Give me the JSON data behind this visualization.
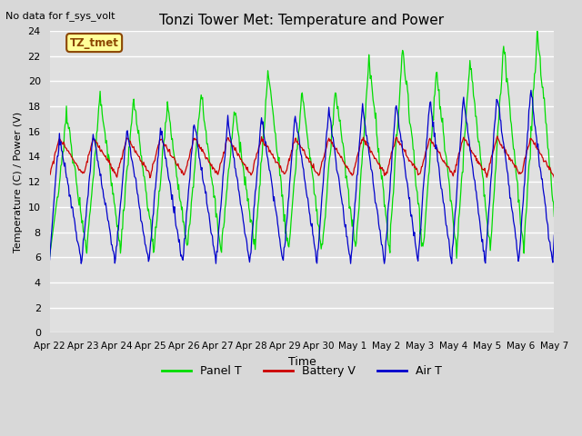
{
  "title": "Tonzi Tower Met: Temperature and Power",
  "top_left_text": "No data for f_sys_volt",
  "ylabel": "Temperature (C) / Power (V)",
  "xlabel": "Time",
  "ylim": [
    0,
    24
  ],
  "yticks": [
    0,
    2,
    4,
    6,
    8,
    10,
    12,
    14,
    16,
    18,
    20,
    22,
    24
  ],
  "xtick_labels": [
    "Apr 22",
    "Apr 23",
    "Apr 24",
    "Apr 25",
    "Apr 26",
    "Apr 27",
    "Apr 28",
    "Apr 29",
    "Apr 30",
    "May 1",
    "May 2",
    "May 3",
    "May 4",
    "May 5",
    "May 6",
    "May 7"
  ],
  "legend_entries": [
    "Panel T",
    "Battery V",
    "Air T"
  ],
  "legend_colors": [
    "#00DD00",
    "#CC0000",
    "#0000CC"
  ],
  "line_colors": {
    "panel": "#00DD00",
    "battery": "#CC0000",
    "air": "#0000CC"
  },
  "annotation_box": {
    "text": "TZ_tmet",
    "text_color": "#8B4500",
    "bg": "#FFFF99",
    "edge_color": "#8B4500"
  },
  "background_color": "#D8D8D8",
  "plot_bg_color": "#E0E0E0",
  "grid_color": "#FFFFFF",
  "figsize": [
    6.4,
    4.8
  ],
  "dpi": 100
}
